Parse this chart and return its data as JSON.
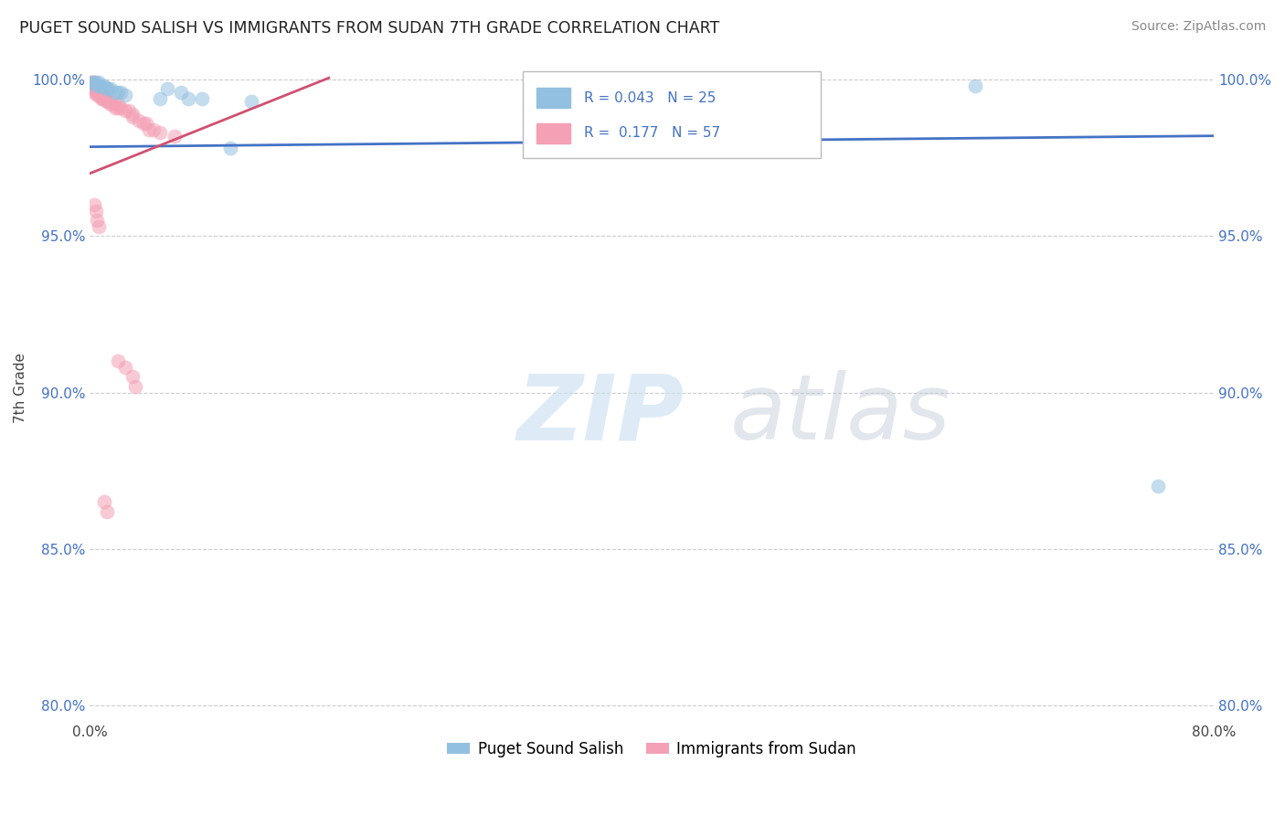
{
  "title": "PUGET SOUND SALISH VS IMMIGRANTS FROM SUDAN 7TH GRADE CORRELATION CHART",
  "source": "Source: ZipAtlas.com",
  "ylabel": "7th Grade",
  "xlim": [
    0.0,
    0.8
  ],
  "ylim": [
    0.795,
    1.008
  ],
  "xticks": [
    0.0,
    0.2,
    0.4,
    0.6,
    0.8
  ],
  "xtick_labels": [
    "0.0%",
    "",
    "",
    "",
    "80.0%"
  ],
  "ytick_labels": [
    "80.0%",
    "85.0%",
    "90.0%",
    "95.0%",
    "100.0%"
  ],
  "yticks": [
    0.8,
    0.85,
    0.9,
    0.95,
    1.0
  ],
  "legend_r_blue": "R = 0.043",
  "legend_n_blue": "N = 25",
  "legend_r_pink": "R =  0.177",
  "legend_n_pink": "N = 57",
  "blue_color": "#92c0e0",
  "pink_color": "#f4a0b5",
  "trend_blue_color": "#4472c4",
  "trend_pink_color": "#d05070",
  "blue_trend_x": [
    0.0,
    0.8
  ],
  "blue_trend_y": [
    0.9785,
    0.982
  ],
  "pink_trend_x": [
    0.0,
    0.17
  ],
  "pink_trend_y": [
    0.97,
    1.0005
  ],
  "blue_scatter": [
    [
      0.001,
      0.999
    ],
    [
      0.003,
      0.999
    ],
    [
      0.004,
      0.999
    ],
    [
      0.005,
      0.998
    ],
    [
      0.006,
      0.999
    ],
    [
      0.007,
      0.998
    ],
    [
      0.009,
      0.998
    ],
    [
      0.01,
      0.998
    ],
    [
      0.012,
      0.997
    ],
    [
      0.013,
      0.997
    ],
    [
      0.015,
      0.997
    ],
    [
      0.018,
      0.996
    ],
    [
      0.02,
      0.996
    ],
    [
      0.022,
      0.996
    ],
    [
      0.025,
      0.995
    ],
    [
      0.05,
      0.994
    ],
    [
      0.055,
      0.997
    ],
    [
      0.065,
      0.996
    ],
    [
      0.07,
      0.994
    ],
    [
      0.08,
      0.994
    ],
    [
      0.1,
      0.978
    ],
    [
      0.115,
      0.993
    ],
    [
      0.5,
      0.998
    ],
    [
      0.63,
      0.998
    ],
    [
      0.76,
      0.87
    ]
  ],
  "pink_scatter": [
    [
      0.001,
      0.999
    ],
    [
      0.001,
      0.998
    ],
    [
      0.002,
      0.999
    ],
    [
      0.002,
      0.998
    ],
    [
      0.002,
      0.997
    ],
    [
      0.003,
      0.999
    ],
    [
      0.003,
      0.998
    ],
    [
      0.003,
      0.997
    ],
    [
      0.003,
      0.996
    ],
    [
      0.004,
      0.998
    ],
    [
      0.004,
      0.997
    ],
    [
      0.004,
      0.996
    ],
    [
      0.005,
      0.997
    ],
    [
      0.005,
      0.996
    ],
    [
      0.005,
      0.995
    ],
    [
      0.006,
      0.997
    ],
    [
      0.006,
      0.996
    ],
    [
      0.006,
      0.995
    ],
    [
      0.007,
      0.996
    ],
    [
      0.007,
      0.995
    ],
    [
      0.008,
      0.996
    ],
    [
      0.008,
      0.994
    ],
    [
      0.009,
      0.995
    ],
    [
      0.009,
      0.994
    ],
    [
      0.01,
      0.995
    ],
    [
      0.01,
      0.994
    ],
    [
      0.011,
      0.994
    ],
    [
      0.012,
      0.993
    ],
    [
      0.013,
      0.993
    ],
    [
      0.015,
      0.993
    ],
    [
      0.015,
      0.992
    ],
    [
      0.017,
      0.992
    ],
    [
      0.018,
      0.991
    ],
    [
      0.02,
      0.992
    ],
    [
      0.02,
      0.991
    ],
    [
      0.022,
      0.991
    ],
    [
      0.025,
      0.99
    ],
    [
      0.028,
      0.99
    ],
    [
      0.03,
      0.989
    ],
    [
      0.03,
      0.988
    ],
    [
      0.035,
      0.987
    ],
    [
      0.038,
      0.986
    ],
    [
      0.04,
      0.986
    ],
    [
      0.042,
      0.984
    ],
    [
      0.045,
      0.984
    ],
    [
      0.05,
      0.983
    ],
    [
      0.06,
      0.982
    ],
    [
      0.003,
      0.96
    ],
    [
      0.004,
      0.958
    ],
    [
      0.005,
      0.955
    ],
    [
      0.006,
      0.953
    ],
    [
      0.02,
      0.91
    ],
    [
      0.025,
      0.908
    ],
    [
      0.03,
      0.905
    ],
    [
      0.032,
      0.902
    ],
    [
      0.01,
      0.865
    ],
    [
      0.012,
      0.862
    ]
  ]
}
